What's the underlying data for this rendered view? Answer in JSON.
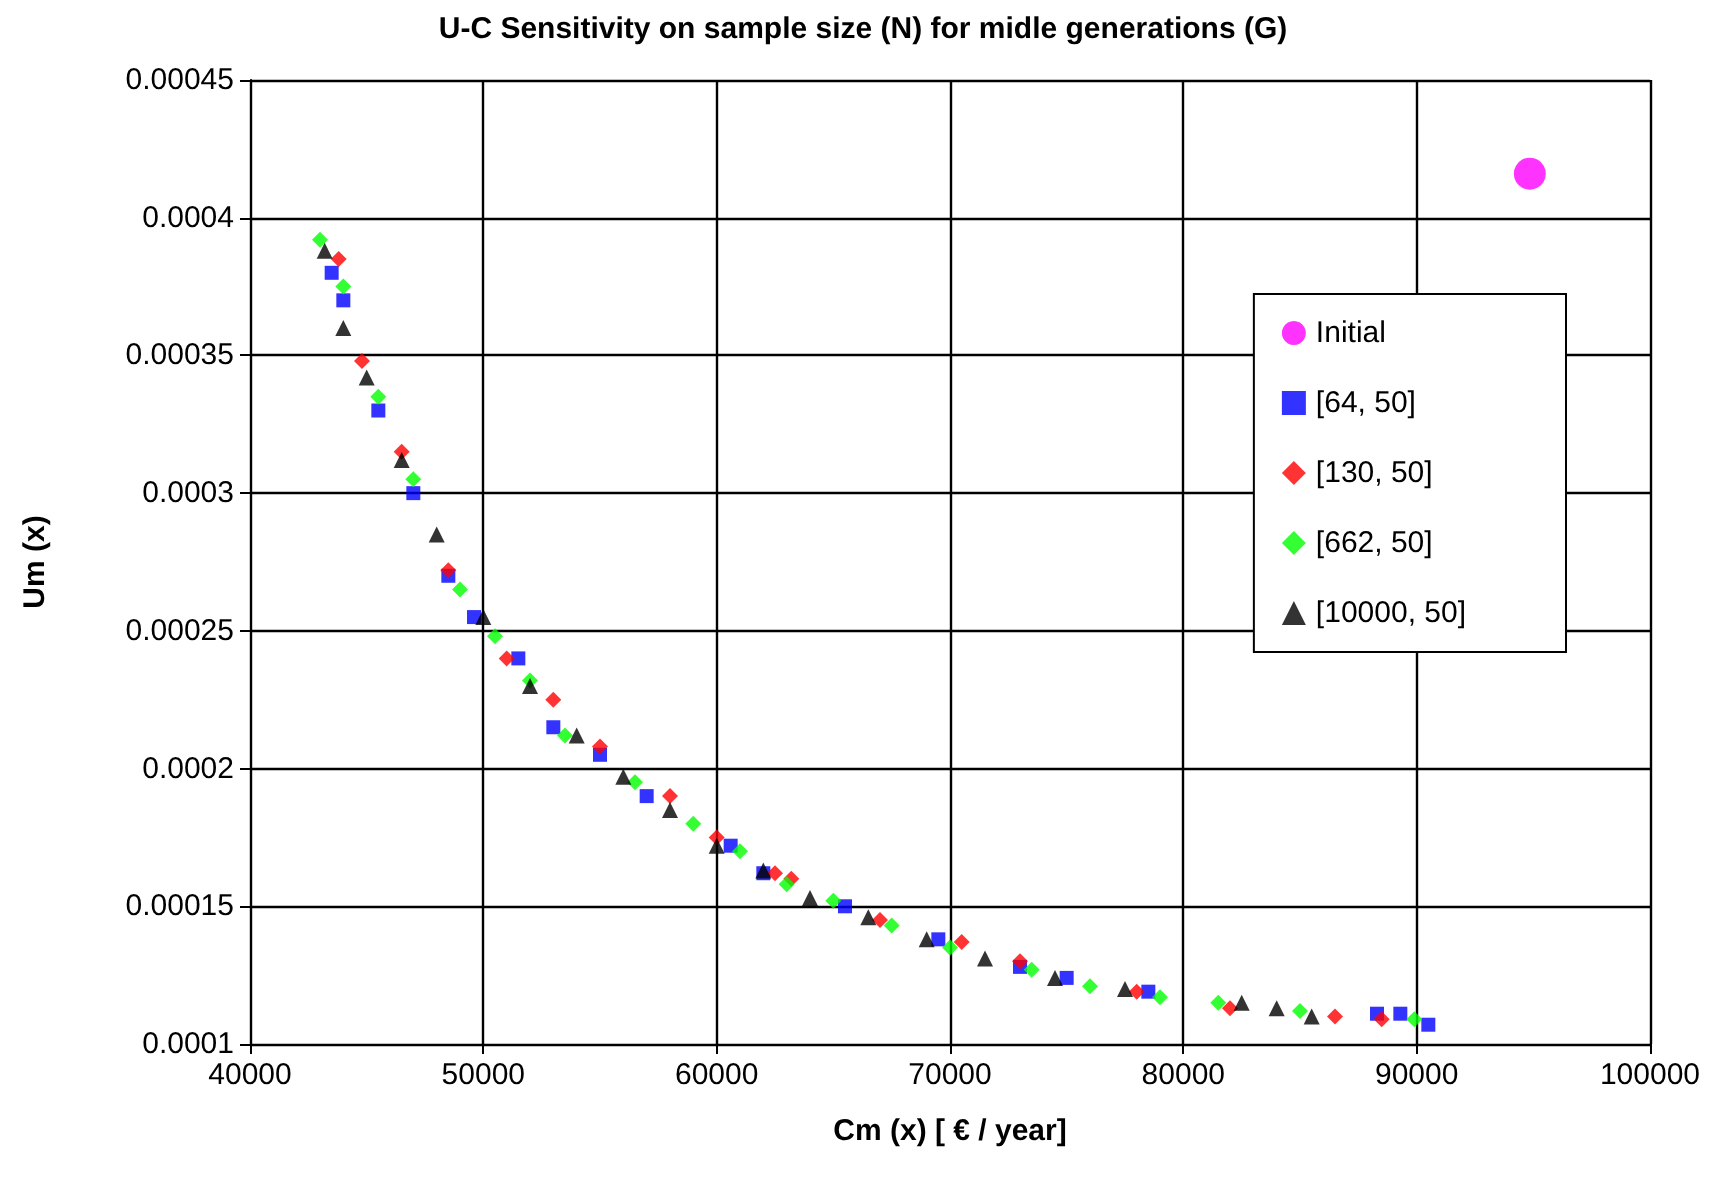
{
  "chart_data": {
    "type": "scatter",
    "title": "U-C Sensitivity on sample size (N) for midle generations (G)",
    "xlabel": "Cm (x) [ € / year]",
    "ylabel": "Um (x)",
    "xlim": [
      40000,
      100000
    ],
    "xticks": [
      40000,
      50000,
      60000,
      70000,
      80000,
      90000,
      100000
    ],
    "ylim": [
      0.0001,
      0.00045
    ],
    "yticks": [
      0.0001,
      0.00015,
      0.0002,
      0.00025,
      0.0003,
      0.00035,
      0.0004,
      0.00045
    ],
    "grid": true,
    "legend": "right",
    "series": [
      {
        "name": "Initial",
        "color": "#ff00ff",
        "marker": "circle",
        "x": [
          94850
        ],
        "values": [
          0.000416
        ]
      },
      {
        "name": "[64, 50]",
        "color": "#0000ff",
        "marker": "square",
        "x": [
          43500,
          44000,
          45500,
          47000,
          48500,
          49600,
          51500,
          53000,
          55000,
          57000,
          60600,
          62000,
          65500,
          69500,
          73000,
          75000,
          78500,
          88300,
          89300,
          90500
        ],
        "values": [
          0.00038,
          0.00037,
          0.00033,
          0.0003,
          0.00027,
          0.000255,
          0.00024,
          0.000215,
          0.000205,
          0.00019,
          0.000172,
          0.000162,
          0.00015,
          0.000138,
          0.000128,
          0.000124,
          0.000119,
          0.000111,
          0.000111,
          0.000107
        ]
      },
      {
        "name": "[130, 50]",
        "color": "#ff0000",
        "marker": "diamond",
        "x": [
          43800,
          44800,
          46500,
          48500,
          51000,
          53000,
          55000,
          58000,
          60000,
          62500,
          63200,
          67000,
          70500,
          73000,
          78000,
          82000,
          86500,
          88500
        ],
        "values": [
          0.000385,
          0.000348,
          0.000315,
          0.000272,
          0.00024,
          0.000225,
          0.000208,
          0.00019,
          0.000175,
          0.000162,
          0.00016,
          0.000145,
          0.000137,
          0.00013,
          0.000119,
          0.000113,
          0.00011,
          0.000109
        ]
      },
      {
        "name": "[662, 50]",
        "color": "#00ff00",
        "marker": "diamond",
        "x": [
          43000,
          44000,
          45500,
          47000,
          49000,
          50500,
          52000,
          53500,
          56500,
          59000,
          61000,
          63000,
          65000,
          67500,
          70000,
          73500,
          76000,
          79000,
          81500,
          85000,
          89900
        ],
        "values": [
          0.000392,
          0.000375,
          0.000335,
          0.000305,
          0.000265,
          0.000248,
          0.000232,
          0.000212,
          0.000195,
          0.00018,
          0.00017,
          0.000158,
          0.000152,
          0.000143,
          0.000135,
          0.000127,
          0.000121,
          0.000117,
          0.000115,
          0.000112,
          0.000109
        ]
      },
      {
        "name": "[10000, 50]",
        "color": "#000000",
        "marker": "triangle",
        "x": [
          43200,
          44000,
          45000,
          46500,
          48000,
          50000,
          52000,
          54000,
          56000,
          58000,
          60000,
          62000,
          64000,
          66500,
          69000,
          71500,
          74500,
          77500,
          82500,
          84000,
          85500
        ],
        "values": [
          0.000388,
          0.00036,
          0.000342,
          0.000312,
          0.000285,
          0.000255,
          0.00023,
          0.000212,
          0.000197,
          0.000185,
          0.000172,
          0.000163,
          0.000153,
          0.000146,
          0.000138,
          0.000131,
          0.000124,
          0.00012,
          0.000115,
          0.000113,
          0.00011
        ]
      }
    ]
  }
}
